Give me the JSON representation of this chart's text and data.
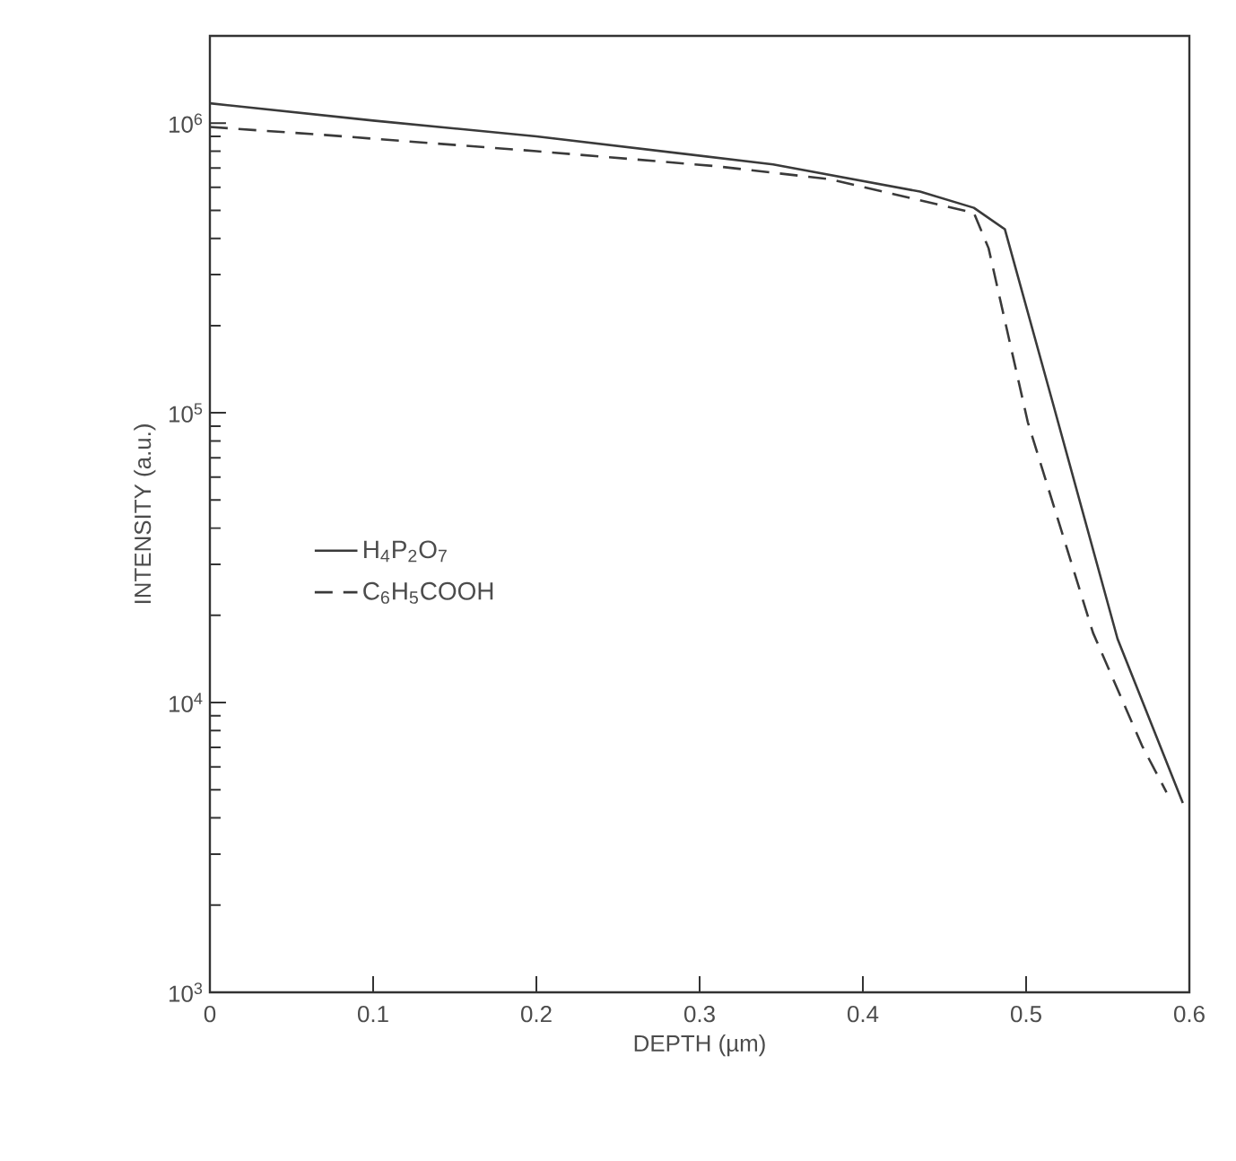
{
  "chart_data": {
    "type": "line",
    "xlabel": "DEPTH (µm)",
    "ylabel": "INTENSITY (a.u.)",
    "log": "y",
    "legend": "left",
    "grid": false,
    "xlim": [
      0,
      0.6
    ],
    "xticks": [
      0,
      0.1,
      0.2,
      0.3,
      0.4,
      0.5,
      0.6
    ],
    "ylim": [
      1000,
      2000000
    ],
    "yticks": [
      {
        "value": 1000,
        "label": "10$^{3}$"
      },
      {
        "value": 10000,
        "label": "10$^{4}$"
      },
      {
        "value": 100000,
        "label": "10$^{5}$"
      },
      {
        "value": 1000000,
        "label": "10$^{6}$"
      }
    ],
    "series": [
      {
        "name": "H$_{4}$P$_{2}$O$_{7}$",
        "color": "#3a3a3a",
        "line_style": "solid",
        "x": [
          0,
          0.1,
          0.2,
          0.345,
          0.435,
          0.468,
          0.487,
          0.516,
          0.556,
          0.596
        ],
        "values": [
          1170000,
          1020000,
          900000,
          720000,
          580000,
          510000,
          430000,
          110000,
          16600,
          4500
        ]
      },
      {
        "name": "C$_{6}$H$_{5}$COOH",
        "color": "#3a3a3a",
        "line_style": "dashed",
        "x": [
          0,
          0.07,
          0.2,
          0.31,
          0.38,
          0.468,
          0.477,
          0.501,
          0.541,
          0.571,
          0.586
        ],
        "values": [
          970000,
          910000,
          800000,
          710000,
          640000,
          490000,
          370000,
          93000,
          17400,
          7100,
          4900
        ]
      }
    ]
  }
}
